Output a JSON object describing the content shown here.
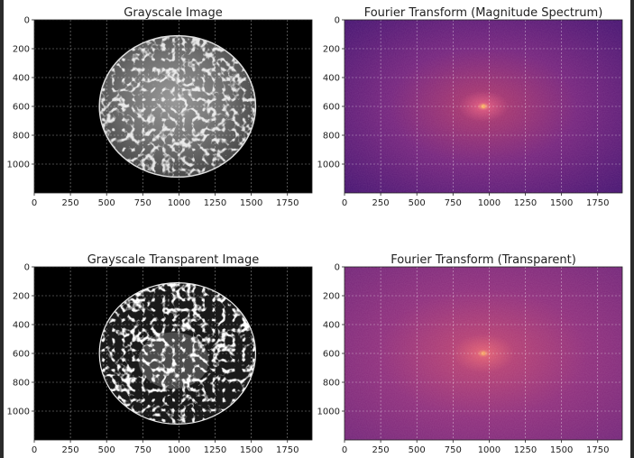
{
  "chart_data": [
    {
      "type": "heatmap",
      "title": "Grayscale Image",
      "xlim": [
        0,
        1920
      ],
      "ylim": [
        1200,
        0
      ],
      "xticks": [
        0,
        250,
        500,
        750,
        1000,
        1250,
        1500,
        1750
      ],
      "yticks": [
        0,
        200,
        400,
        600,
        800,
        1000
      ],
      "grid": true,
      "colormap": "gray",
      "background": "#000000",
      "content": "textured-disc",
      "disc_center": [
        990,
        600
      ],
      "disc_radius": [
        540,
        490
      ]
    },
    {
      "type": "heatmap",
      "title": "Fourier Transform (Magnitude Spectrum)",
      "xlim": [
        0,
        1920
      ],
      "ylim": [
        1200,
        0
      ],
      "xticks": [
        0,
        250,
        500,
        750,
        1000,
        1250,
        1500,
        1750
      ],
      "yticks": [
        0,
        200,
        400,
        600,
        800,
        1000
      ],
      "grid": true,
      "colormap": "magma",
      "center_peak": [
        960,
        600
      ],
      "colors": [
        "#f8ac6a",
        "#b23a6e",
        "#74237d",
        "#3e0f6e"
      ]
    },
    {
      "type": "heatmap",
      "title": "Grayscale Transparent Image",
      "xlim": [
        0,
        1920
      ],
      "ylim": [
        1200,
        0
      ],
      "xticks": [
        0,
        250,
        500,
        750,
        1000,
        1250,
        1500,
        1750
      ],
      "yticks": [
        0,
        200,
        400,
        600,
        800,
        1000
      ],
      "grid": true,
      "colormap": "gray",
      "background": "#000000",
      "content": "outlined-disc",
      "disc_center": [
        990,
        600
      ],
      "disc_radius": [
        540,
        490
      ]
    },
    {
      "type": "heatmap",
      "title": "Fourier Transform (Transparent)",
      "xlim": [
        0,
        1920
      ],
      "ylim": [
        1200,
        0
      ],
      "xticks": [
        0,
        250,
        500,
        750,
        1000,
        1250,
        1500,
        1750
      ],
      "yticks": [
        0,
        200,
        400,
        600,
        800,
        1000
      ],
      "grid": true,
      "colormap": "magma",
      "center_peak": [
        960,
        600
      ],
      "colors": [
        "#f4a06a",
        "#c4466f",
        "#8e2e7c",
        "#6f2378"
      ]
    }
  ]
}
